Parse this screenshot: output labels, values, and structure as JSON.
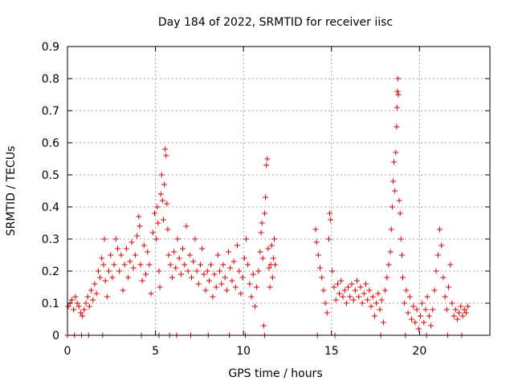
{
  "chart_data": {
    "type": "scatter",
    "title": "Day 184 of 2022, SRMTID for receiver iisc",
    "xlabel": "GPS time / hours",
    "ylabel": "SRMTID / TECUs",
    "xlim": [
      0,
      24
    ],
    "ylim": [
      0,
      0.9
    ],
    "xticks": [
      0,
      5,
      10,
      15,
      20
    ],
    "yticks": [
      0,
      0.1,
      0.2,
      0.3,
      0.4,
      0.5,
      0.6,
      0.7,
      0.8,
      0.9
    ],
    "xtick_labels": [
      "0",
      "5",
      "10",
      "15",
      "20"
    ],
    "ytick_labels": [
      "0",
      "0.1",
      "0.2",
      "0.3",
      "0.4",
      "0.5",
      "0.6",
      "0.7",
      "0.8",
      "0.9"
    ],
    "grid": true,
    "marker": "+",
    "color": "#e00000",
    "series": [
      {
        "name": "SRMTID",
        "points": [
          [
            0.05,
            0.09
          ],
          [
            0.15,
            0.1
          ],
          [
            0.25,
            0.11
          ],
          [
            0.35,
            0.08
          ],
          [
            0.45,
            0.12
          ],
          [
            0.55,
            0.1
          ],
          [
            0.65,
            0.09
          ],
          [
            0.75,
            0.07
          ],
          [
            0.85,
            0.06
          ],
          [
            0.95,
            0.08
          ],
          [
            1.05,
            0.1
          ],
          [
            1.15,
            0.12
          ],
          [
            1.25,
            0.09
          ],
          [
            1.35,
            0.14
          ],
          [
            1.45,
            0.11
          ],
          [
            1.55,
            0.16
          ],
          [
            1.65,
            0.13
          ],
          [
            1.75,
            0.2
          ],
          [
            1.85,
            0.18
          ],
          [
            1.95,
            0.24
          ],
          [
            2.05,
            0.22
          ],
          [
            2.1,
            0.3
          ],
          [
            2.15,
            0.17
          ],
          [
            2.25,
            0.12
          ],
          [
            2.35,
            0.2
          ],
          [
            2.45,
            0.25
          ],
          [
            2.55,
            0.18
          ],
          [
            2.65,
            0.22
          ],
          [
            2.75,
            0.3
          ],
          [
            2.85,
            0.27
          ],
          [
            2.95,
            0.2
          ],
          [
            3.05,
            0.25
          ],
          [
            3.15,
            0.14
          ],
          [
            3.25,
            0.22
          ],
          [
            3.35,
            0.27
          ],
          [
            3.45,
            0.18
          ],
          [
            3.55,
            0.23
          ],
          [
            3.65,
            0.29
          ],
          [
            3.75,
            0.21
          ],
          [
            3.85,
            0.25
          ],
          [
            3.95,
            0.31
          ],
          [
            4.05,
            0.37
          ],
          [
            4.1,
            0.34
          ],
          [
            4.15,
            0.22
          ],
          [
            4.25,
            0.17
          ],
          [
            4.35,
            0.28
          ],
          [
            4.45,
            0.19
          ],
          [
            4.55,
            0.26
          ],
          [
            4.65,
            0.22
          ],
          [
            4.75,
            0.13
          ],
          [
            4.85,
            0.32
          ],
          [
            4.95,
            0.38
          ],
          [
            5.05,
            0.3
          ],
          [
            5.1,
            0.4
          ],
          [
            5.15,
            0.35
          ],
          [
            5.2,
            0.2
          ],
          [
            5.25,
            0.15
          ],
          [
            5.3,
            0.44
          ],
          [
            5.35,
            0.5
          ],
          [
            5.4,
            0.42
          ],
          [
            5.45,
            0.36
          ],
          [
            5.5,
            0.47
          ],
          [
            5.55,
            0.58
          ],
          [
            5.6,
            0.56
          ],
          [
            5.65,
            0.41
          ],
          [
            5.7,
            0.33
          ],
          [
            5.75,
            0.25
          ],
          [
            5.85,
            0.22
          ],
          [
            5.95,
            0.18
          ],
          [
            6.05,
            0.26
          ],
          [
            6.15,
            0.21
          ],
          [
            6.25,
            0.3
          ],
          [
            6.35,
            0.24
          ],
          [
            6.45,
            0.19
          ],
          [
            6.55,
            0.27
          ],
          [
            6.65,
            0.22
          ],
          [
            6.75,
            0.34
          ],
          [
            6.85,
            0.2
          ],
          [
            6.95,
            0.25
          ],
          [
            7.05,
            0.18
          ],
          [
            7.15,
            0.23
          ],
          [
            7.25,
            0.3
          ],
          [
            7.35,
            0.2
          ],
          [
            7.45,
            0.16
          ],
          [
            7.55,
            0.22
          ],
          [
            7.65,
            0.27
          ],
          [
            7.75,
            0.19
          ],
          [
            7.85,
            0.14
          ],
          [
            7.95,
            0.2
          ],
          [
            8.05,
            0.17
          ],
          [
            8.15,
            0.22
          ],
          [
            8.25,
            0.12
          ],
          [
            8.35,
            0.19
          ],
          [
            8.45,
            0.15
          ],
          [
            8.55,
            0.25
          ],
          [
            8.65,
            0.2
          ],
          [
            8.75,
            0.16
          ],
          [
            8.85,
            0.22
          ],
          [
            8.95,
            0.18
          ],
          [
            9.05,
            0.14
          ],
          [
            9.15,
            0.26
          ],
          [
            9.25,
            0.21
          ],
          [
            9.35,
            0.17
          ],
          [
            9.45,
            0.23
          ],
          [
            9.55,
            0.15
          ],
          [
            9.65,
            0.28
          ],
          [
            9.75,
            0.2
          ],
          [
            9.85,
            0.13
          ],
          [
            9.95,
            0.18
          ],
          [
            10.05,
            0.24
          ],
          [
            10.15,
            0.3
          ],
          [
            10.25,
            0.22
          ],
          [
            10.35,
            0.16
          ],
          [
            10.45,
            0.12
          ],
          [
            10.55,
            0.19
          ],
          [
            10.65,
            0.09
          ],
          [
            10.75,
            0.15
          ],
          [
            10.85,
            0.2
          ],
          [
            10.95,
            0.26
          ],
          [
            11.0,
            0.32
          ],
          [
            11.05,
            0.35
          ],
          [
            11.1,
            0.24
          ],
          [
            11.15,
            0.03
          ],
          [
            11.2,
            0.38
          ],
          [
            11.25,
            0.43
          ],
          [
            11.3,
            0.53
          ],
          [
            11.35,
            0.55
          ],
          [
            11.4,
            0.27
          ],
          [
            11.45,
            0.21
          ],
          [
            11.5,
            0.15
          ],
          [
            11.55,
            0.22
          ],
          [
            11.6,
            0.28
          ],
          [
            11.65,
            0.18
          ],
          [
            11.7,
            0.24
          ],
          [
            11.75,
            0.3
          ],
          [
            11.8,
            0.22
          ],
          [
            14.1,
            0.33
          ],
          [
            14.15,
            0.29
          ],
          [
            14.25,
            0.25
          ],
          [
            14.35,
            0.21
          ],
          [
            14.45,
            0.18
          ],
          [
            14.55,
            0.14
          ],
          [
            14.65,
            0.1
          ],
          [
            14.75,
            0.07
          ],
          [
            14.85,
            0.3
          ],
          [
            14.9,
            0.38
          ],
          [
            14.95,
            0.36
          ],
          [
            15.05,
            0.2
          ],
          [
            15.15,
            0.15
          ],
          [
            15.25,
            0.11
          ],
          [
            15.35,
            0.16
          ],
          [
            15.45,
            0.13
          ],
          [
            15.55,
            0.17
          ],
          [
            15.65,
            0.12
          ],
          [
            15.75,
            0.14
          ],
          [
            15.85,
            0.1
          ],
          [
            15.95,
            0.15
          ],
          [
            16.05,
            0.12
          ],
          [
            16.15,
            0.16
          ],
          [
            16.25,
            0.11
          ],
          [
            16.35,
            0.14
          ],
          [
            16.45,
            0.17
          ],
          [
            16.55,
            0.12
          ],
          [
            16.65,
            0.15
          ],
          [
            16.75,
            0.1
          ],
          [
            16.85,
            0.13
          ],
          [
            16.95,
            0.16
          ],
          [
            17.05,
            0.11
          ],
          [
            17.15,
            0.14
          ],
          [
            17.25,
            0.09
          ],
          [
            17.35,
            0.12
          ],
          [
            17.45,
            0.06
          ],
          [
            17.55,
            0.1
          ],
          [
            17.65,
            0.13
          ],
          [
            17.75,
            0.08
          ],
          [
            17.85,
            0.11
          ],
          [
            17.95,
            0.04
          ],
          [
            18.05,
            0.14
          ],
          [
            18.15,
            0.18
          ],
          [
            18.25,
            0.22
          ],
          [
            18.35,
            0.26
          ],
          [
            18.4,
            0.33
          ],
          [
            18.45,
            0.4
          ],
          [
            18.5,
            0.48
          ],
          [
            18.55,
            0.54
          ],
          [
            18.6,
            0.45
          ],
          [
            18.65,
            0.57
          ],
          [
            18.7,
            0.65
          ],
          [
            18.72,
            0.71
          ],
          [
            18.75,
            0.76
          ],
          [
            18.78,
            0.8
          ],
          [
            18.8,
            0.75
          ],
          [
            18.85,
            0.42
          ],
          [
            18.9,
            0.38
          ],
          [
            18.95,
            0.3
          ],
          [
            19.0,
            0.25
          ],
          [
            19.05,
            0.18
          ],
          [
            19.15,
            0.1
          ],
          [
            19.25,
            0.14
          ],
          [
            19.35,
            0.07
          ],
          [
            19.45,
            0.12
          ],
          [
            19.55,
            0.05
          ],
          [
            19.65,
            0.09
          ],
          [
            19.75,
            0.04
          ],
          [
            19.85,
            0.08
          ],
          [
            19.95,
            0.02
          ],
          [
            20.05,
            0.06
          ],
          [
            20.15,
            0.1
          ],
          [
            20.25,
            0.04
          ],
          [
            20.35,
            0.08
          ],
          [
            20.45,
            0.12
          ],
          [
            20.55,
            0.06
          ],
          [
            20.65,
            0.03
          ],
          [
            20.75,
            0.08
          ],
          [
            20.85,
            0.14
          ],
          [
            20.95,
            0.2
          ],
          [
            21.05,
            0.25
          ],
          [
            21.15,
            0.33
          ],
          [
            21.25,
            0.28
          ],
          [
            21.35,
            0.18
          ],
          [
            21.45,
            0.12
          ],
          [
            21.55,
            0.08
          ],
          [
            21.65,
            0.15
          ],
          [
            21.75,
            0.22
          ],
          [
            21.85,
            0.1
          ],
          [
            21.95,
            0.06
          ],
          [
            22.05,
            0.08
          ],
          [
            22.15,
            0.05
          ],
          [
            22.25,
            0.07
          ],
          [
            22.35,
            0.09
          ],
          [
            22.45,
            0.06
          ],
          [
            22.55,
            0.08
          ],
          [
            22.65,
            0.07
          ],
          [
            22.75,
            0.09
          ],
          [
            0.0,
            0.0
          ],
          [
            0.4,
            0.0
          ],
          [
            0.8,
            0.0
          ],
          [
            1.2,
            0.0
          ],
          [
            2.0,
            0.0
          ],
          [
            4.2,
            0.0
          ],
          [
            5.2,
            0.0
          ],
          [
            5.8,
            0.0
          ],
          [
            6.2,
            0.0
          ],
          [
            7.0,
            0.0
          ],
          [
            8.0,
            0.0
          ],
          [
            9.2,
            0.0
          ],
          [
            10.1,
            0.0
          ],
          [
            11.2,
            0.0
          ],
          [
            14.2,
            0.0
          ],
          [
            15.2,
            0.0
          ],
          [
            17.8,
            0.0
          ],
          [
            19.2,
            0.0
          ],
          [
            20.4,
            0.0
          ],
          [
            21.6,
            0.0
          ],
          [
            22.4,
            0.0
          ]
        ]
      }
    ]
  }
}
